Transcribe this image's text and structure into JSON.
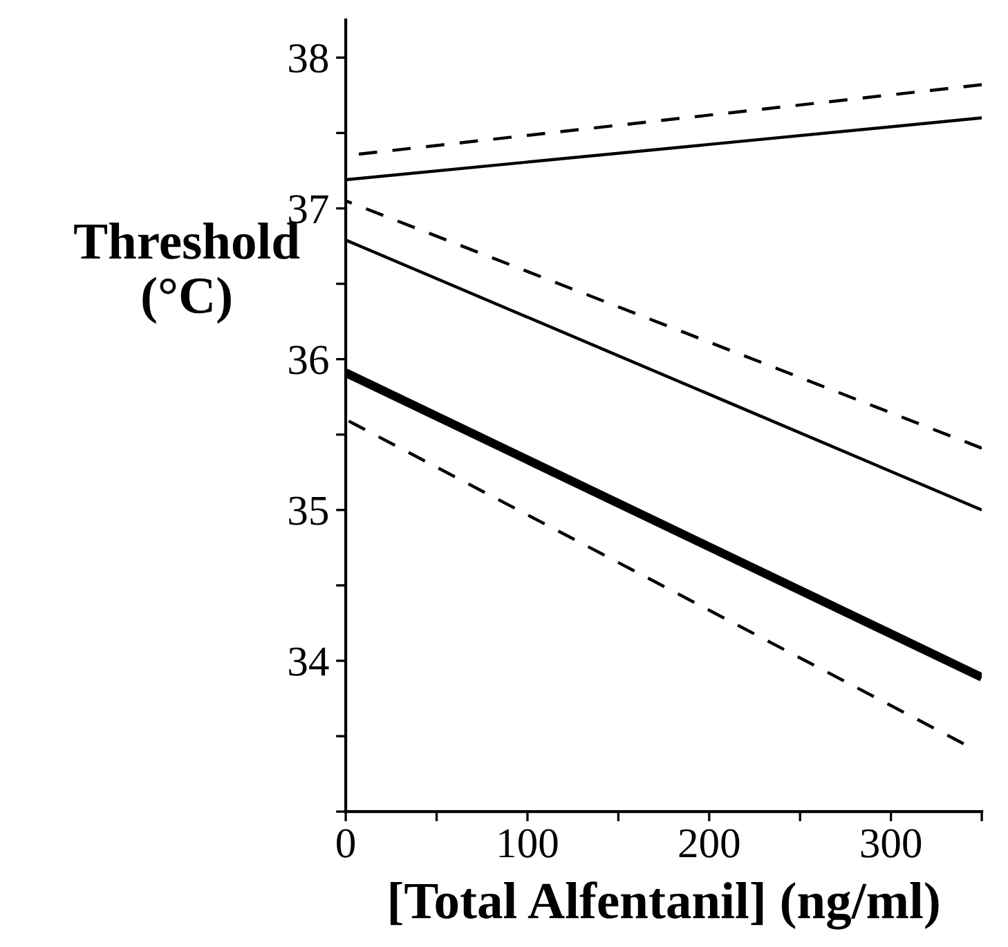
{
  "chart_data": {
    "type": "line",
    "xlabel": "[Total Alfentanil] (ng/ml)",
    "ylabel": "Threshold\n(°C)",
    "xlim": [
      0,
      350
    ],
    "ylim": [
      33,
      38.25
    ],
    "xticks": [
      0,
      {
        "value": 50,
        "label": null
      },
      100,
      {
        "value": 150,
        "label": null
      },
      200,
      {
        "value": 250,
        "label": null
      },
      300,
      {
        "value": 350,
        "label": null
      }
    ],
    "yticks": [
      {
        "value": 33,
        "label": null
      },
      {
        "value": 33.5,
        "label": null
      },
      34,
      {
        "value": 34.5,
        "label": null
      },
      35,
      {
        "value": 35.5,
        "label": null
      },
      36,
      {
        "value": 36.5,
        "label": null
      },
      37,
      {
        "value": 37.5,
        "label": null
      },
      38
    ],
    "grid": false,
    "legend": false,
    "marker": "none",
    "series": [
      {
        "color": "#000000",
        "line_style": "dashed",
        "x": [
          0,
          350
        ],
        "values": [
          37.35,
          37.82
        ]
      },
      {
        "color": "#000000",
        "line_style": "solid",
        "x": [
          0,
          350
        ],
        "values": [
          37.19,
          37.6
        ]
      },
      {
        "color": "#000000",
        "line_style": "dashed",
        "x": [
          0,
          350
        ],
        "values": [
          37.05,
          35.41
        ]
      },
      {
        "color": "#000000",
        "line_style": "solid",
        "x": [
          0,
          350
        ],
        "values": [
          36.79,
          35.0
        ]
      },
      {
        "color": "#000000",
        "line_style": "solid",
        "x": [
          0,
          350
        ],
        "values": [
          35.91,
          33.89
        ]
      },
      {
        "color": "#000000",
        "line_style": "dashed",
        "x": [
          0,
          340
        ],
        "values": [
          35.6,
          33.45
        ]
      }
    ]
  }
}
